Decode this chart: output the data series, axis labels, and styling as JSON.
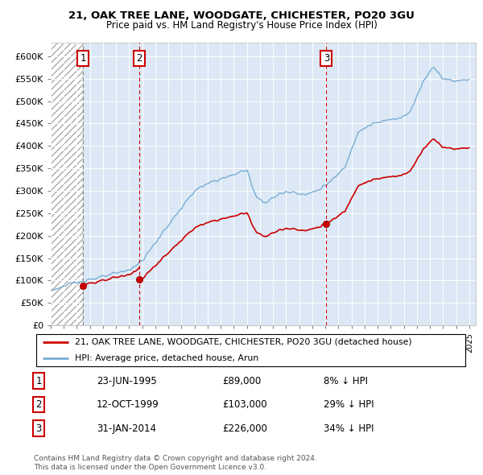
{
  "title1": "21, OAK TREE LANE, WOODGATE, CHICHESTER, PO20 3GU",
  "title2": "Price paid vs. HM Land Registry's House Price Index (HPI)",
  "ylabel_ticks": [
    "£0",
    "£50K",
    "£100K",
    "£150K",
    "£200K",
    "£250K",
    "£300K",
    "£350K",
    "£400K",
    "£450K",
    "£500K",
    "£550K",
    "£600K"
  ],
  "ytick_values": [
    0,
    50000,
    100000,
    150000,
    200000,
    250000,
    300000,
    350000,
    400000,
    450000,
    500000,
    550000,
    600000
  ],
  "xlim": [
    1993.0,
    2025.5
  ],
  "ylim": [
    0,
    630000
  ],
  "sale_dates": [
    1995.47,
    1999.78,
    2014.08
  ],
  "sale_prices": [
    89000,
    103000,
    226000
  ],
  "sale_labels": [
    "1",
    "2",
    "3"
  ],
  "hpi_line_color": "#7aadd4",
  "price_line_color": "#cc0000",
  "sale_dot_color": "#cc0000",
  "legend_entries": [
    "21, OAK TREE LANE, WOODGATE, CHICHESTER, PO20 3GU (detached house)",
    "HPI: Average price, detached house, Arun"
  ],
  "table_rows": [
    [
      "1",
      "23-JUN-1995",
      "£89,000",
      "8% ↓ HPI"
    ],
    [
      "2",
      "12-OCT-1999",
      "£103,000",
      "29% ↓ HPI"
    ],
    [
      "3",
      "31-JAN-2014",
      "£226,000",
      "34% ↓ HPI"
    ]
  ],
  "footnote": "Contains HM Land Registry data © Crown copyright and database right 2024.\nThis data is licensed under the Open Government Licence v3.0.",
  "xtick_years": [
    1993,
    1994,
    1995,
    1996,
    1997,
    1998,
    1999,
    2000,
    2001,
    2002,
    2003,
    2004,
    2005,
    2006,
    2007,
    2008,
    2009,
    2010,
    2011,
    2012,
    2013,
    2014,
    2015,
    2016,
    2017,
    2018,
    2019,
    2020,
    2021,
    2022,
    2023,
    2024,
    2025
  ],
  "hpi_data_x": [
    1993.0,
    1993.08,
    1993.17,
    1993.25,
    1993.33,
    1993.42,
    1993.5,
    1993.58,
    1993.67,
    1993.75,
    1993.83,
    1993.92,
    1994.0,
    1994.08,
    1994.17,
    1994.25,
    1994.33,
    1994.42,
    1994.5,
    1994.58,
    1994.67,
    1994.75,
    1994.83,
    1994.92,
    1995.0,
    1995.08,
    1995.17,
    1995.25,
    1995.33,
    1995.42,
    1995.5,
    1995.58,
    1995.67,
    1995.75,
    1995.83,
    1995.92,
    1996.0,
    1996.08,
    1996.17,
    1996.25,
    1996.33,
    1996.42,
    1996.5,
    1996.58,
    1996.67,
    1996.75,
    1996.83,
    1996.92,
    1997.0,
    1997.08,
    1997.17,
    1997.25,
    1997.33,
    1997.42,
    1997.5,
    1997.58,
    1997.67,
    1997.75,
    1997.83,
    1997.92,
    1998.0,
    1998.08,
    1998.17,
    1998.25,
    1998.33,
    1998.42,
    1998.5,
    1998.58,
    1998.67,
    1998.75,
    1998.83,
    1998.92,
    1999.0,
    1999.08,
    1999.17,
    1999.25,
    1999.33,
    1999.42,
    1999.5,
    1999.58,
    1999.67,
    1999.75,
    1999.83,
    1999.92,
    2000.0,
    2000.08,
    2000.17,
    2000.25,
    2000.33,
    2000.42,
    2000.5,
    2000.58,
    2000.67,
    2000.75,
    2000.83,
    2000.92,
    2001.0,
    2001.08,
    2001.17,
    2001.25,
    2001.33,
    2001.42,
    2001.5,
    2001.58,
    2001.67,
    2001.75,
    2001.83,
    2001.92,
    2002.0,
    2002.08,
    2002.17,
    2002.25,
    2002.33,
    2002.42,
    2002.5,
    2002.58,
    2002.67,
    2002.75,
    2002.83,
    2002.92,
    2003.0,
    2003.08,
    2003.17,
    2003.25,
    2003.33,
    2003.42,
    2003.5,
    2003.58,
    2003.67,
    2003.75,
    2003.83,
    2003.92,
    2004.0,
    2004.08,
    2004.17,
    2004.25,
    2004.33,
    2004.42,
    2004.5,
    2004.58,
    2004.67,
    2004.75,
    2004.83,
    2004.92,
    2005.0,
    2005.08,
    2005.17,
    2005.25,
    2005.33,
    2005.42,
    2005.5,
    2005.58,
    2005.67,
    2005.75,
    2005.83,
    2005.92,
    2006.0,
    2006.08,
    2006.17,
    2006.25,
    2006.33,
    2006.42,
    2006.5,
    2006.58,
    2006.67,
    2006.75,
    2006.83,
    2006.92,
    2007.0,
    2007.08,
    2007.17,
    2007.25,
    2007.33,
    2007.42,
    2007.5,
    2007.58,
    2007.67,
    2007.75,
    2007.83,
    2007.92,
    2008.0,
    2008.08,
    2008.17,
    2008.25,
    2008.33,
    2008.42,
    2008.5,
    2008.58,
    2008.67,
    2008.75,
    2008.83,
    2008.92,
    2009.0,
    2009.08,
    2009.17,
    2009.25,
    2009.33,
    2009.42,
    2009.5,
    2009.58,
    2009.67,
    2009.75,
    2009.83,
    2009.92,
    2010.0,
    2010.08,
    2010.17,
    2010.25,
    2010.33,
    2010.42,
    2010.5,
    2010.58,
    2010.67,
    2010.75,
    2010.83,
    2010.92,
    2011.0,
    2011.08,
    2011.17,
    2011.25,
    2011.33,
    2011.42,
    2011.5,
    2011.58,
    2011.67,
    2011.75,
    2011.83,
    2011.92,
    2012.0,
    2012.08,
    2012.17,
    2012.25,
    2012.33,
    2012.42,
    2012.5,
    2012.58,
    2012.67,
    2012.75,
    2012.83,
    2012.92,
    2013.0,
    2013.08,
    2013.17,
    2013.25,
    2013.33,
    2013.42,
    2013.5,
    2013.58,
    2013.67,
    2013.75,
    2013.83,
    2013.92,
    2014.0,
    2014.08,
    2014.17,
    2014.25,
    2014.33,
    2014.42,
    2014.5,
    2014.58,
    2014.67,
    2014.75,
    2014.83,
    2014.92,
    2015.0,
    2015.08,
    2015.17,
    2015.25,
    2015.33,
    2015.42,
    2015.5,
    2015.58,
    2015.67,
    2015.75,
    2015.83,
    2015.92,
    2016.0,
    2016.08,
    2016.17,
    2016.25,
    2016.33,
    2016.42,
    2016.5,
    2016.58,
    2016.67,
    2016.75,
    2016.83,
    2016.92,
    2017.0,
    2017.08,
    2017.17,
    2017.25,
    2017.33,
    2017.42,
    2017.5,
    2017.58,
    2017.67,
    2017.75,
    2017.83,
    2017.92,
    2018.0,
    2018.08,
    2018.17,
    2018.25,
    2018.33,
    2018.42,
    2018.5,
    2018.58,
    2018.67,
    2018.75,
    2018.83,
    2018.92,
    2019.0,
    2019.08,
    2019.17,
    2019.25,
    2019.33,
    2019.42,
    2019.5,
    2019.58,
    2019.67,
    2019.75,
    2019.83,
    2019.92,
    2020.0,
    2020.08,
    2020.17,
    2020.25,
    2020.33,
    2020.42,
    2020.5,
    2020.58,
    2020.67,
    2020.75,
    2020.83,
    2020.92,
    2021.0,
    2021.08,
    2021.17,
    2021.25,
    2021.33,
    2021.42,
    2021.5,
    2021.58,
    2021.67,
    2021.75,
    2021.83,
    2021.92,
    2022.0,
    2022.08,
    2022.17,
    2022.25,
    2022.33,
    2022.42,
    2022.5,
    2022.58,
    2022.67,
    2022.75,
    2022.83,
    2022.92,
    2023.0,
    2023.08,
    2023.17,
    2023.25,
    2023.33,
    2023.42,
    2023.5,
    2023.58,
    2023.67,
    2023.75,
    2023.83,
    2023.92,
    2024.0,
    2024.08,
    2024.17,
    2024.25,
    2024.33,
    2024.42,
    2024.5,
    2024.58,
    2024.67,
    2024.75,
    2024.83,
    2024.92,
    2025.0
  ]
}
